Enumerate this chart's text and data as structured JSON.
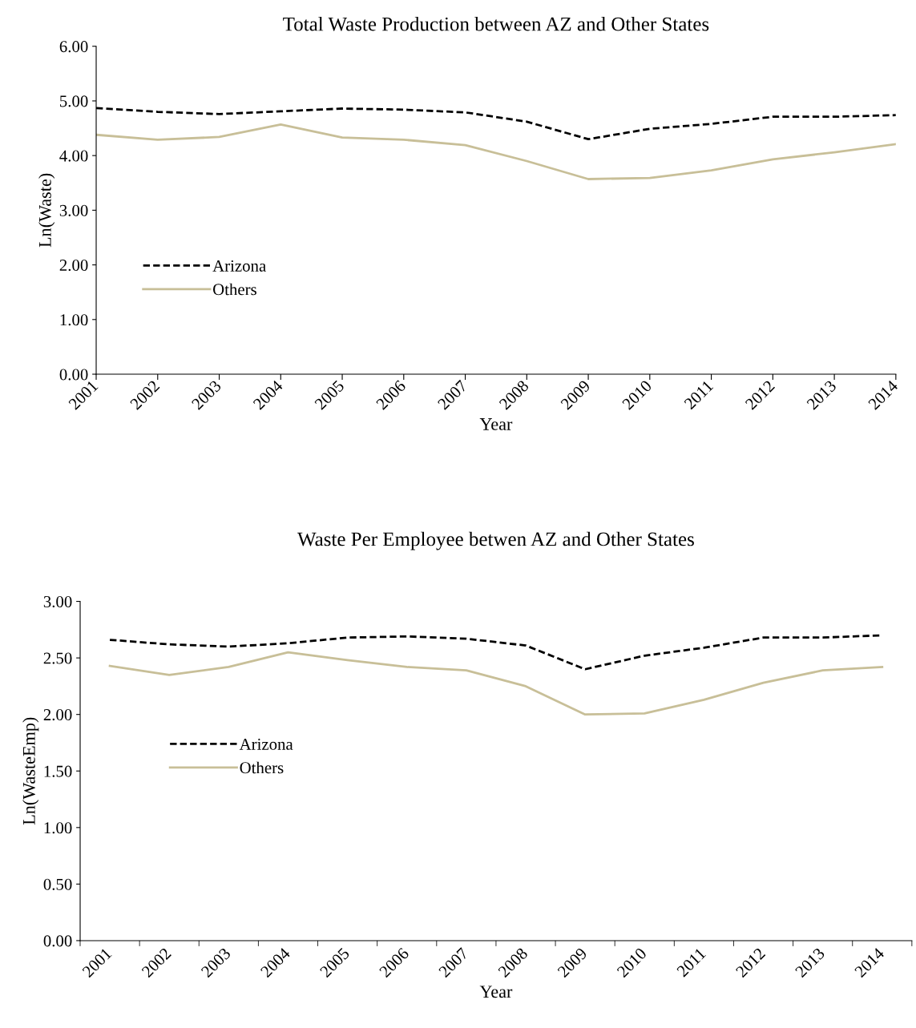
{
  "chart_data": [
    {
      "type": "line",
      "title": "Total Waste Production between AZ and Other States",
      "xlabel": "Year",
      "ylabel": "Ln(Waste)",
      "categories": [
        "2001",
        "2002",
        "2003",
        "2004",
        "2005",
        "2006",
        "2007",
        "2008",
        "2009",
        "2010",
        "2011",
        "2012",
        "2013",
        "2014"
      ],
      "series": [
        {
          "name": "Arizona",
          "color": "#000000",
          "line_style": "dashed",
          "values": [
            4.87,
            4.8,
            4.76,
            4.81,
            4.86,
            4.84,
            4.79,
            4.62,
            4.3,
            4.49,
            4.58,
            4.71,
            4.71,
            4.74
          ]
        },
        {
          "name": "Others",
          "color": "#c8bf98",
          "line_style": "solid",
          "values": [
            4.38,
            4.29,
            4.34,
            4.57,
            4.33,
            4.29,
            4.19,
            3.9,
            3.57,
            3.59,
            3.73,
            3.93,
            4.06,
            4.21
          ]
        }
      ],
      "ylim": [
        0,
        6
      ],
      "yticks": [
        {
          "value": 0,
          "label": "0.00"
        },
        {
          "value": 1,
          "label": "1.00"
        },
        {
          "value": 2,
          "label": "2.00"
        },
        {
          "value": 3,
          "label": "3.00"
        },
        {
          "value": 4,
          "label": "4.00"
        },
        {
          "value": 5,
          "label": "5.00"
        },
        {
          "value": 6,
          "label": "6.00"
        }
      ],
      "grid": false,
      "legend": "left"
    },
    {
      "type": "line",
      "title": "Waste Per Employee betwen AZ and Other States",
      "xlabel": "Year",
      "ylabel": "Ln(WasteEmp)",
      "categories": [
        "2001",
        "2002",
        "2003",
        "2004",
        "2005",
        "2006",
        "2007",
        "2008",
        "2009",
        "2010",
        "2011",
        "2012",
        "2013",
        "2014"
      ],
      "series": [
        {
          "name": "Arizona",
          "color": "#000000",
          "line_style": "dashed",
          "values": [
            2.66,
            2.62,
            2.6,
            2.63,
            2.68,
            2.69,
            2.67,
            2.61,
            2.4,
            2.52,
            2.59,
            2.68,
            2.68,
            2.7
          ]
        },
        {
          "name": "Others",
          "color": "#c8bf98",
          "line_style": "solid",
          "values": [
            2.43,
            2.35,
            2.42,
            2.55,
            2.48,
            2.42,
            2.39,
            2.25,
            2.0,
            2.01,
            2.13,
            2.28,
            2.39,
            2.42
          ]
        }
      ],
      "ylim": [
        0,
        3
      ],
      "yticks": [
        {
          "value": 0,
          "label": "0.00"
        },
        {
          "value": 0.5,
          "label": "0.50"
        },
        {
          "value": 1,
          "label": "1.00"
        },
        {
          "value": 1.5,
          "label": "1.50"
        },
        {
          "value": 2,
          "label": "2.00"
        },
        {
          "value": 2.5,
          "label": "2.50"
        },
        {
          "value": 3,
          "label": "3.00"
        }
      ],
      "grid": false,
      "legend": "left"
    }
  ]
}
